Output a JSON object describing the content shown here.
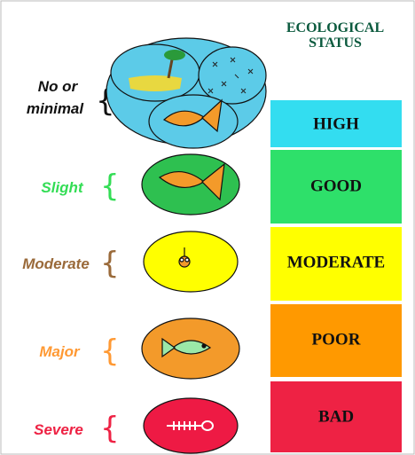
{
  "header": {
    "title_lines": [
      "ECOLOGICAL",
      "STATUS"
    ]
  },
  "rows": [
    {
      "impact_lines": [
        "No or",
        "minimal"
      ],
      "status": "HIGH"
    },
    {
      "impact_lines": [
        "Slight"
      ],
      "status": "GOOD"
    },
    {
      "impact_lines": [
        "Moderate"
      ],
      "status": "MODERATE"
    },
    {
      "impact_lines": [
        "Major"
      ],
      "status": "POOR"
    },
    {
      "impact_lines": [
        "Severe"
      ],
      "status": "BAD"
    }
  ]
}
